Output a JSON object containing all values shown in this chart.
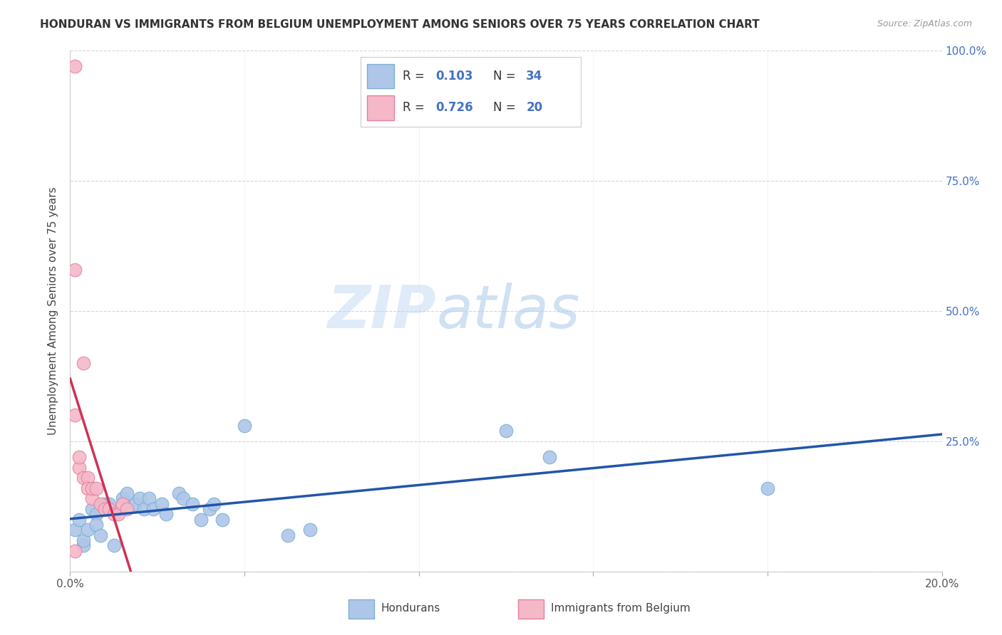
{
  "title": "HONDURAN VS IMMIGRANTS FROM BELGIUM UNEMPLOYMENT AMONG SENIORS OVER 75 YEARS CORRELATION CHART",
  "source": "Source: ZipAtlas.com",
  "ylabel": "Unemployment Among Seniors over 75 years",
  "x_min": 0.0,
  "x_max": 0.2,
  "y_min": 0.0,
  "y_max": 1.0,
  "x_ticks": [
    0.0,
    0.04,
    0.08,
    0.12,
    0.16,
    0.2
  ],
  "x_tick_labels": [
    "0.0%",
    "",
    "",
    "",
    "",
    "20.0%"
  ],
  "y_ticks": [
    0.0,
    0.25,
    0.5,
    0.75,
    1.0
  ],
  "right_y_tick_labels": [
    "",
    "25.0%",
    "50.0%",
    "75.0%",
    "100.0%"
  ],
  "honduran_color": "#aec6e8",
  "honduran_edge_color": "#7bafd4",
  "belgium_color": "#f4b8c8",
  "belgium_edge_color": "#e87fa0",
  "trend_honduras_color": "#2255aa",
  "trend_belgium_color": "#cc3355",
  "watermark_zip": "ZIP",
  "watermark_atlas": "atlas",
  "legend_r1": "R = 0.103",
  "legend_n1": "N = 34",
  "legend_r2": "R = 0.726",
  "legend_n2": "N = 20",
  "label_color": "#4472c4",
  "honduran_x": [
    0.001,
    0.002,
    0.003,
    0.003,
    0.004,
    0.005,
    0.006,
    0.006,
    0.007,
    0.008,
    0.009,
    0.01,
    0.012,
    0.013,
    0.015,
    0.016,
    0.017,
    0.018,
    0.019,
    0.021,
    0.022,
    0.025,
    0.026,
    0.028,
    0.03,
    0.032,
    0.033,
    0.035,
    0.04,
    0.05,
    0.055,
    0.1,
    0.11,
    0.16
  ],
  "honduran_y": [
    0.08,
    0.1,
    0.05,
    0.06,
    0.08,
    0.12,
    0.11,
    0.09,
    0.07,
    0.13,
    0.13,
    0.05,
    0.14,
    0.15,
    0.13,
    0.14,
    0.12,
    0.14,
    0.12,
    0.13,
    0.11,
    0.15,
    0.14,
    0.13,
    0.1,
    0.12,
    0.13,
    0.1,
    0.28,
    0.07,
    0.08,
    0.27,
    0.22,
    0.16
  ],
  "belgium_x": [
    0.001,
    0.001,
    0.001,
    0.002,
    0.002,
    0.003,
    0.003,
    0.004,
    0.004,
    0.005,
    0.005,
    0.006,
    0.007,
    0.008,
    0.009,
    0.01,
    0.011,
    0.012,
    0.013,
    0.001
  ],
  "belgium_y": [
    0.97,
    0.58,
    0.3,
    0.2,
    0.22,
    0.4,
    0.18,
    0.18,
    0.16,
    0.14,
    0.16,
    0.16,
    0.13,
    0.12,
    0.12,
    0.11,
    0.11,
    0.13,
    0.12,
    0.04
  ]
}
